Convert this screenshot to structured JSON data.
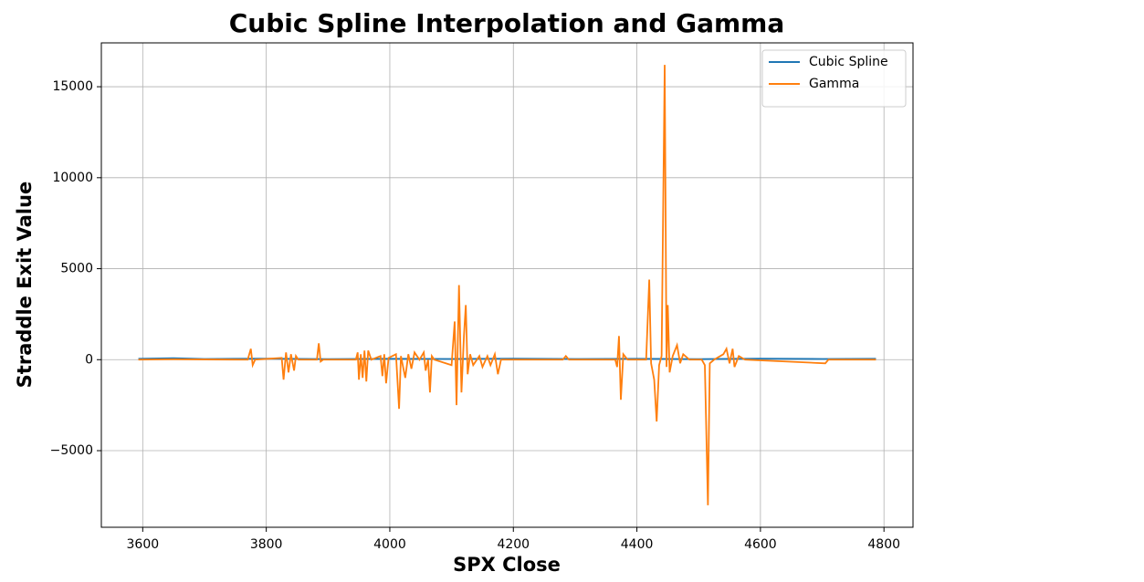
{
  "chart_data": {
    "type": "line",
    "title": "Cubic Spline Interpolation and Gamma",
    "xlabel": "SPX Close",
    "ylabel": "Straddle Exit Value",
    "xlim": [
      3533,
      4847
    ],
    "ylim": [
      -9210,
      17410
    ],
    "xticks": [
      3600,
      3800,
      4000,
      4200,
      4400,
      4600,
      4800
    ],
    "yticks": [
      {
        "value": -5000,
        "label": "−5000"
      },
      0,
      5000,
      10000,
      15000
    ],
    "grid": true,
    "legend": "upper right",
    "series": [
      {
        "name": "Cubic Spline",
        "color": "#1f77b4",
        "x": [
          3593,
          3650,
          3700,
          3800,
          3900,
          4000,
          4100,
          4200,
          4300,
          4400,
          4500,
          4600,
          4700,
          4787
        ],
        "values": [
          50,
          80,
          40,
          60,
          30,
          50,
          40,
          60,
          40,
          50,
          30,
          60,
          40,
          50
        ]
      },
      {
        "name": "Gamma",
        "color": "#ff7f0e",
        "x": [
          3593,
          3650,
          3700,
          3770,
          3775,
          3778,
          3782,
          3825,
          3828,
          3832,
          3836,
          3840,
          3845,
          3848,
          3852,
          3882,
          3885,
          3888,
          3892,
          3945,
          3948,
          3950,
          3953,
          3956,
          3959,
          3962,
          3965,
          3970,
          3985,
          3988,
          3991,
          3994,
          3998,
          4010,
          4015,
          4018,
          4025,
          4030,
          4035,
          4040,
          4048,
          4055,
          4058,
          4062,
          4065,
          4068,
          4072,
          4100,
          4105,
          4108,
          4112,
          4116,
          4120,
          4123,
          4126,
          4130,
          4135,
          4145,
          4150,
          4158,
          4163,
          4170,
          4175,
          4180,
          4280,
          4285,
          4290,
          4365,
          4368,
          4371,
          4374,
          4378,
          4385,
          4415,
          4420,
          4423,
          4428,
          4432,
          4436,
          4440,
          4445,
          4448,
          4450,
          4453,
          4458,
          4465,
          4470,
          4475,
          4485,
          4505,
          4510,
          4515,
          4518,
          4525,
          4540,
          4545,
          4550,
          4555,
          4558,
          4565,
          4575,
          4705,
          4710,
          4787
        ],
        "values": [
          0,
          20,
          10,
          0,
          600,
          -300,
          0,
          100,
          -1100,
          400,
          -700,
          300,
          -600,
          200,
          0,
          0,
          900,
          -100,
          0,
          0,
          400,
          -1100,
          300,
          -1000,
          500,
          -1200,
          500,
          0,
          200,
          -900,
          300,
          -1300,
          100,
          300,
          -2700,
          200,
          -1000,
          300,
          -500,
          400,
          0,
          400,
          -600,
          0,
          -1800,
          200,
          0,
          -300,
          2100,
          -2500,
          4100,
          -1800,
          1300,
          3000,
          -800,
          300,
          -300,
          200,
          -400,
          200,
          -300,
          300,
          -800,
          0,
          0,
          200,
          0,
          0,
          -400,
          1300,
          -2200,
          300,
          0,
          0,
          4400,
          -200,
          -1100,
          -3400,
          -300,
          200,
          16200,
          -400,
          3000,
          -700,
          200,
          800,
          -200,
          300,
          0,
          0,
          -300,
          -8000,
          -200,
          0,
          300,
          600,
          -200,
          600,
          -400,
          200,
          0,
          -200,
          0,
          0
        ]
      }
    ]
  }
}
